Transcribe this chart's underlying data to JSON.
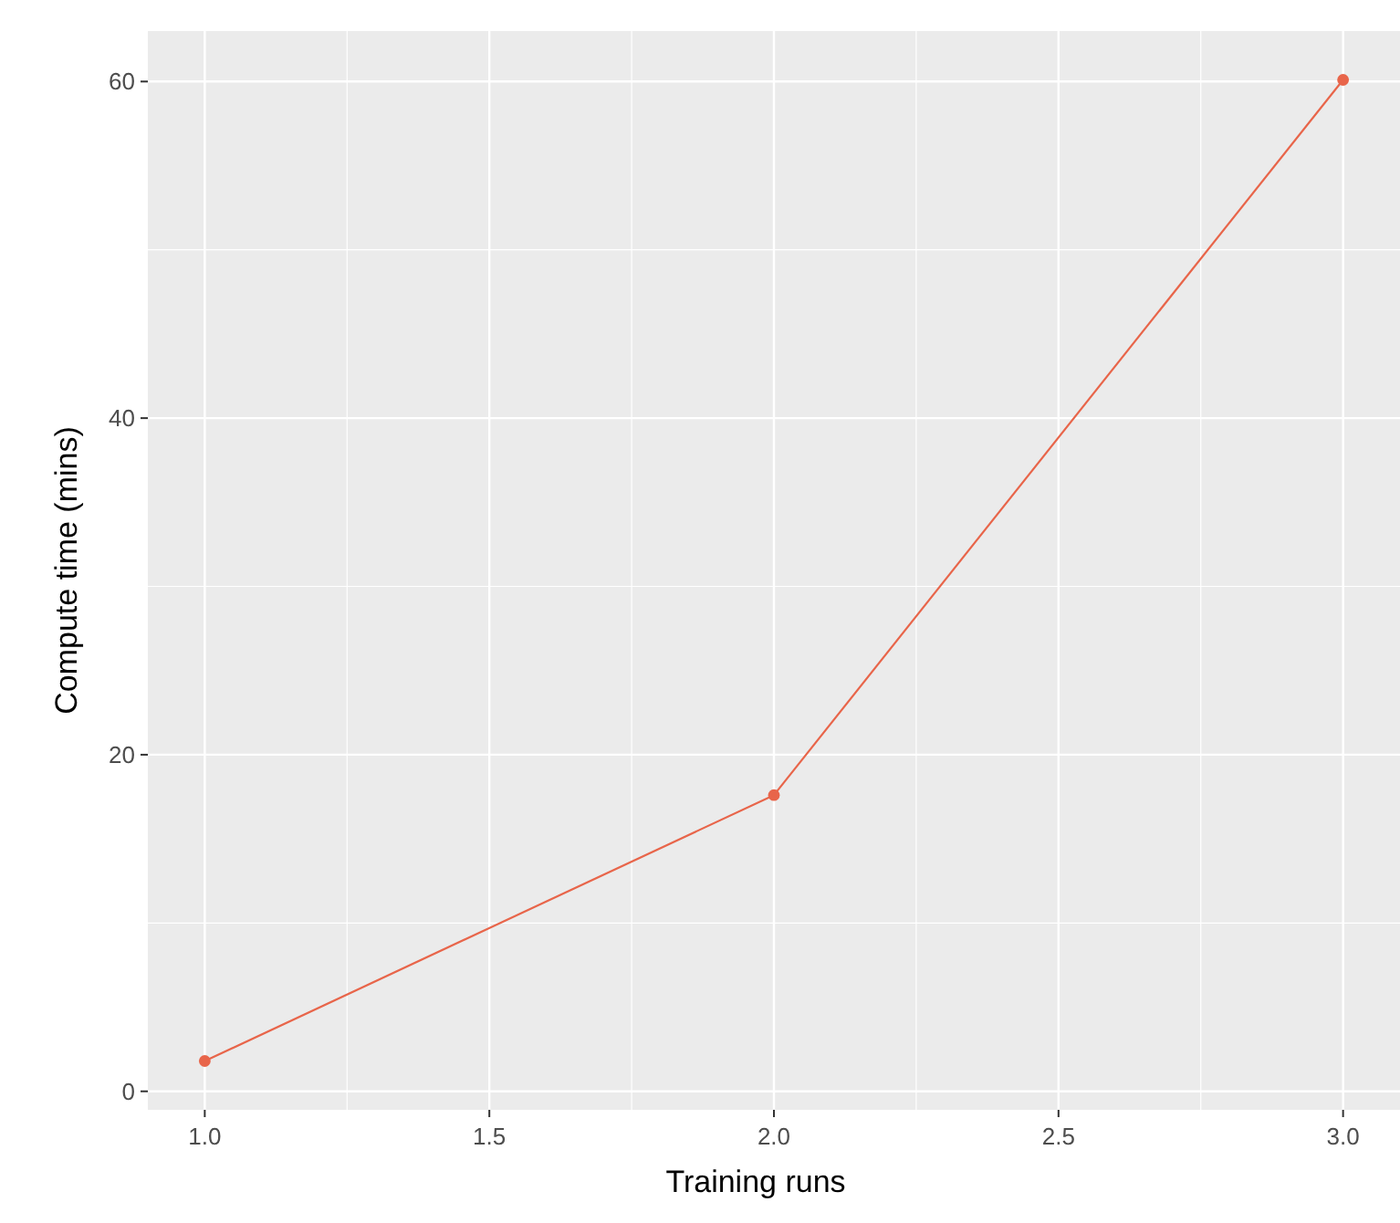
{
  "chart_data": {
    "type": "line",
    "xlabel": "Training runs",
    "ylabel": "Compute time (mins)",
    "x": [
      1,
      2,
      3
    ],
    "series": [
      {
        "color": "#e8654a",
        "values": [
          1.8,
          17.6,
          60.1
        ]
      }
    ],
    "xlim": [
      0.9,
      3.1
    ],
    "ylim": [
      -1.1,
      63
    ],
    "xticks": [
      {
        "value": 1,
        "label": "1.0"
      },
      1.5,
      {
        "value": 2,
        "label": "2.0"
      },
      2.5,
      {
        "value": 3,
        "label": "3.0"
      }
    ],
    "yticks": [
      0,
      20,
      40,
      60
    ],
    "grid": true,
    "marker": "circle",
    "line_style": "solid"
  }
}
